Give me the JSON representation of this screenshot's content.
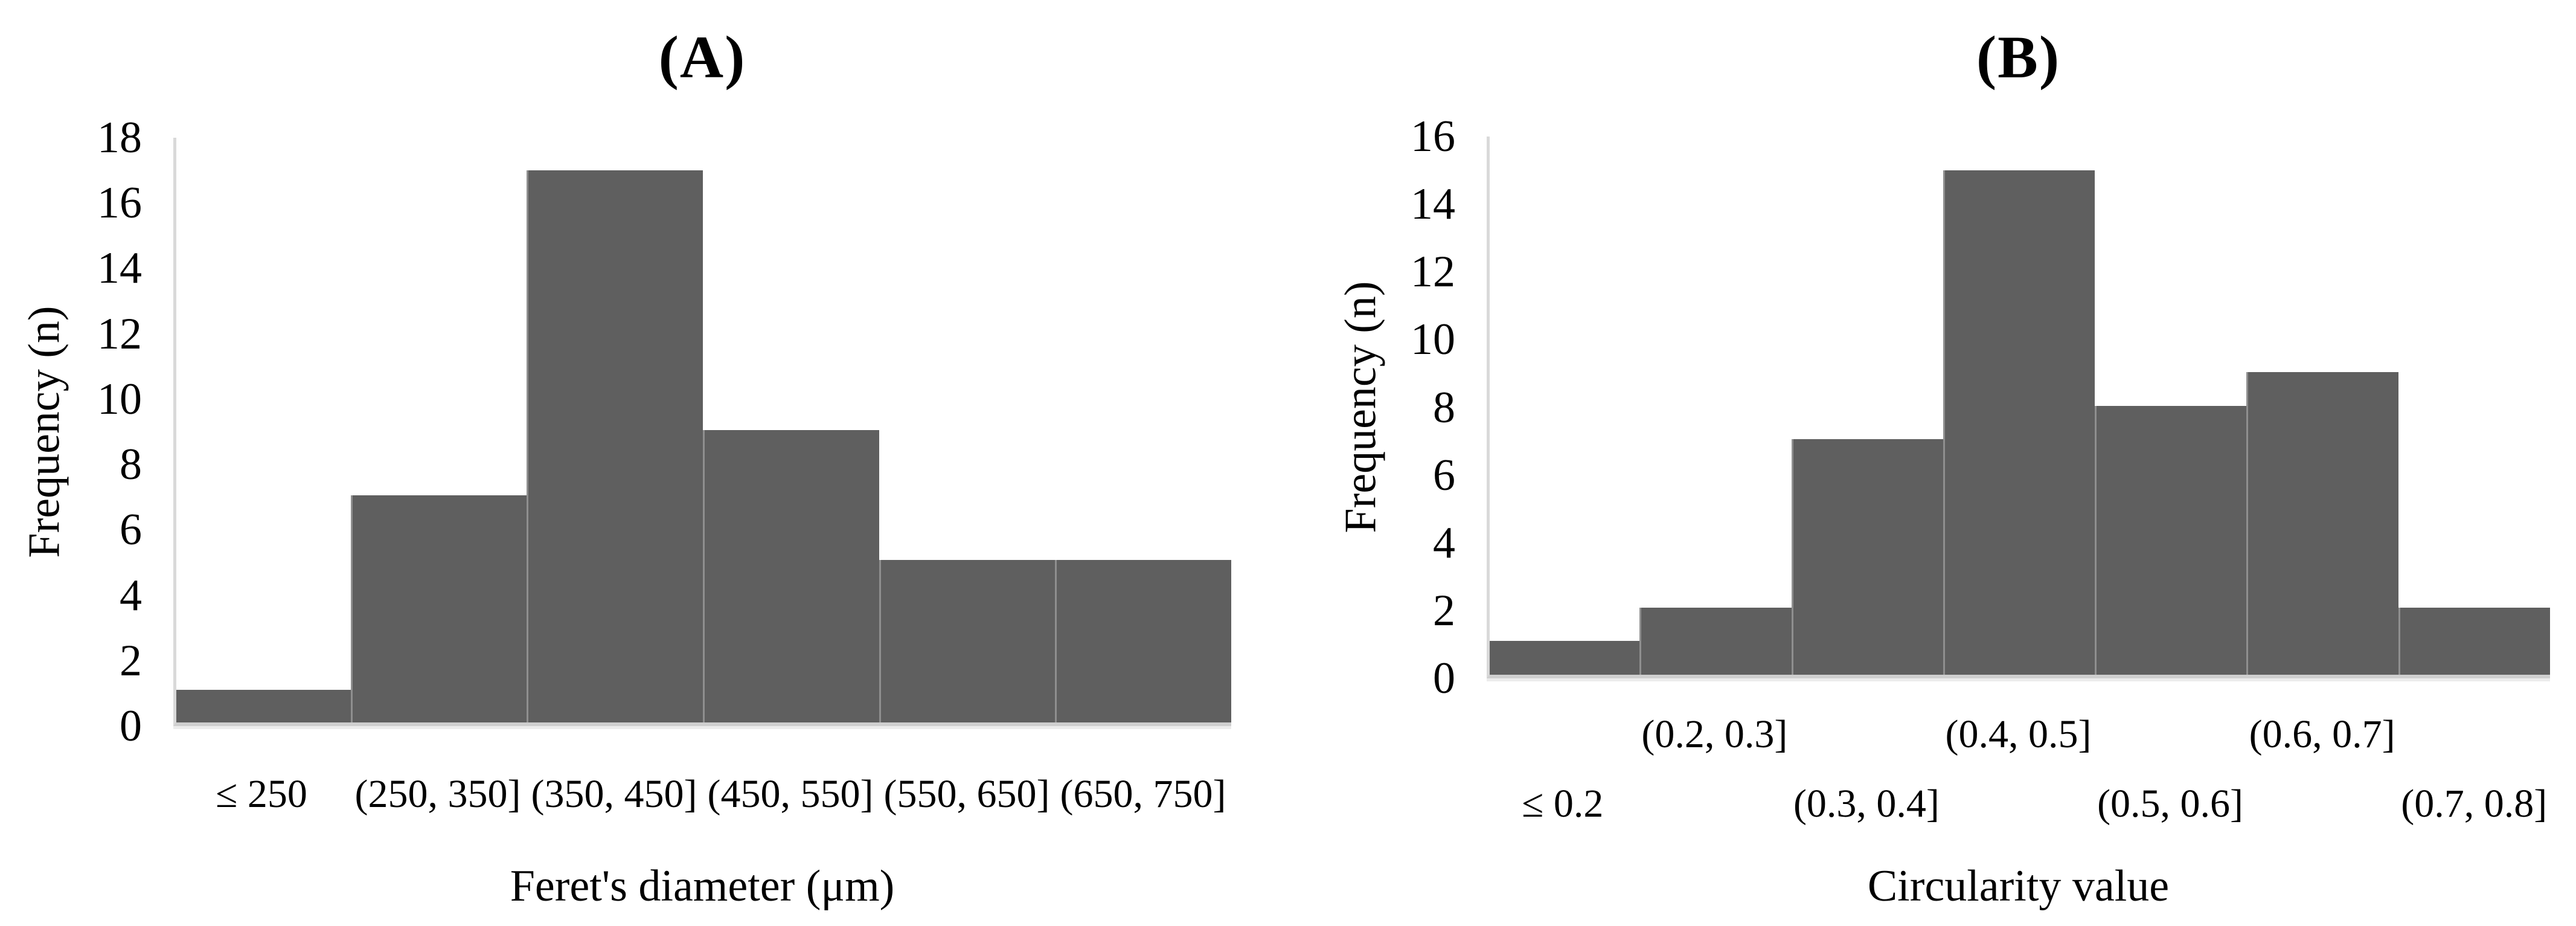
{
  "figure": {
    "panel_count": 2,
    "background_color": "#ffffff",
    "text_color": "#000000"
  },
  "chart_data": [
    {
      "type": "bar",
      "panel": "A",
      "title": "(A)",
      "xlabel": "Feret's diameter (μm)",
      "ylabel": "Frequency (n)",
      "categories": [
        "≤ 250",
        "(250, 350]",
        "(350, 450]",
        "(450, 550]",
        "(550, 650]",
        "(650, 750]"
      ],
      "values": [
        1,
        7,
        17,
        9,
        5,
        5
      ],
      "yticks": [
        18,
        16,
        14,
        12,
        10,
        8,
        6,
        4,
        2,
        0
      ],
      "ylim": [
        0,
        18
      ],
      "ymax": 18,
      "ytick_step": 2,
      "bar_color": "#5f5f5f",
      "bar_divider_color": "#8f8f8f",
      "axis_color": "#d9d9d9",
      "grid": false,
      "legend_position": "none",
      "xtick_layout": "single-row"
    },
    {
      "type": "bar",
      "panel": "B",
      "title": "(B)",
      "xlabel": "Circularity value",
      "ylabel": "Frequency (n)",
      "categories": [
        "≤ 0.2",
        "(0.2, 0.3]",
        "(0.3, 0.4]",
        "(0.4, 0.5]",
        "(0.5, 0.6]",
        "(0.6, 0.7]",
        "(0.7, 0.8]"
      ],
      "values": [
        1,
        2,
        7,
        15,
        8,
        9,
        2
      ],
      "yticks": [
        16,
        14,
        12,
        10,
        8,
        6,
        4,
        2,
        0
      ],
      "ylim": [
        0,
        16
      ],
      "ymax": 16,
      "ytick_step": 2,
      "bar_color": "#5f5f5f",
      "bar_divider_color": "#8f8f8f",
      "axis_color": "#d9d9d9",
      "grid": false,
      "legend_position": "none",
      "xtick_layout": "staggered-two-row"
    }
  ]
}
